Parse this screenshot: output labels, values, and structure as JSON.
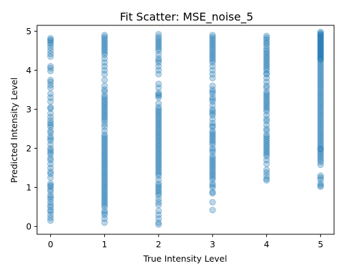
{
  "chart_data": {
    "type": "scatter",
    "title": "Fit Scatter: MSE_noise_5",
    "xlabel": "True Intensity Level",
    "ylabel": "Predicted Intensity Level",
    "xlim": [
      -0.25,
      5.25
    ],
    "ylim": [
      -0.2,
      5.15
    ],
    "xticks": [
      0,
      1,
      2,
      3,
      4,
      5
    ],
    "yticks": [
      0,
      1,
      2,
      3,
      4,
      5
    ],
    "grid": false,
    "marker_color": "#1f77b4",
    "marker_alpha": 0.3,
    "series": [
      {
        "x": [
          0,
          0,
          0,
          0,
          0,
          0,
          0,
          0,
          0,
          0,
          0,
          0,
          0,
          0,
          0,
          0,
          0,
          0,
          0,
          0,
          0,
          0,
          0,
          0,
          0,
          0,
          0,
          0,
          0,
          0,
          0,
          0,
          0,
          0,
          0,
          0,
          0,
          0,
          0,
          0,
          0,
          0,
          0,
          0,
          0,
          0,
          0,
          0,
          0,
          0,
          0,
          0,
          0,
          0,
          0,
          0,
          0,
          0,
          0,
          0
        ],
        "y": [
          4.82,
          4.78,
          4.75,
          4.7,
          4.65,
          4.58,
          4.5,
          4.42,
          4.35,
          4.1,
          3.98,
          3.75,
          3.7,
          3.62,
          3.55,
          3.4,
          3.3,
          3.2,
          3.05,
          3.02,
          2.9,
          2.8,
          2.72,
          2.65,
          2.55,
          2.45,
          2.4,
          2.3,
          2.25,
          2.2,
          2.1,
          2.0,
          1.9,
          1.85,
          1.75,
          1.7,
          1.6,
          1.5,
          1.4,
          1.35,
          1.25,
          1.1,
          1.05,
          1.02,
          0.95,
          0.8,
          0.75,
          0.7,
          0.62,
          0.55,
          0.5,
          0.42,
          0.38,
          0.3,
          0.22,
          0.15,
          4.05,
          2.6,
          1.95,
          0.9
        ]
      },
      {
        "x": [
          1,
          1,
          1,
          1,
          1,
          1,
          1,
          1,
          1,
          1,
          1,
          1,
          1,
          1,
          1,
          1,
          1,
          1,
          1,
          1,
          1,
          1,
          1,
          1,
          1,
          1,
          1,
          1,
          1,
          1,
          1,
          1,
          1,
          1,
          1,
          1,
          1,
          1,
          1,
          1,
          1,
          1,
          1,
          1,
          1,
          1,
          1,
          1,
          1,
          1,
          1,
          1,
          1,
          1,
          1,
          1,
          1,
          1,
          1,
          1,
          1,
          1,
          1,
          1,
          1,
          1,
          1,
          1,
          1,
          1,
          1,
          1,
          1,
          1,
          1,
          1,
          1,
          1,
          1,
          1
        ],
        "y": [
          4.9,
          4.85,
          4.8,
          4.75,
          4.7,
          4.65,
          4.6,
          4.55,
          4.5,
          4.45,
          4.4,
          4.3,
          4.2,
          4.1,
          4.0,
          3.9,
          3.75,
          3.5,
          3.45,
          3.35,
          3.3,
          3.25,
          3.2,
          3.15,
          3.1,
          3.05,
          3.0,
          2.95,
          2.9,
          2.85,
          2.8,
          2.75,
          2.7,
          2.62,
          2.55,
          2.45,
          2.35,
          2.3,
          2.25,
          2.2,
          2.15,
          2.1,
          2.05,
          2.0,
          1.95,
          1.9,
          1.85,
          1.8,
          1.75,
          1.7,
          1.65,
          1.6,
          1.55,
          1.5,
          1.45,
          1.4,
          1.35,
          1.3,
          1.25,
          1.2,
          1.15,
          1.1,
          1.05,
          1.0,
          0.95,
          0.9,
          0.85,
          0.8,
          0.75,
          0.7,
          0.65,
          0.6,
          0.55,
          0.5,
          0.4,
          0.35,
          0.3,
          0.2,
          0.1,
          3.6
        ]
      },
      {
        "x": [
          2,
          2,
          2,
          2,
          2,
          2,
          2,
          2,
          2,
          2,
          2,
          2,
          2,
          2,
          2,
          2,
          2,
          2,
          2,
          2,
          2,
          2,
          2,
          2,
          2,
          2,
          2,
          2,
          2,
          2,
          2,
          2,
          2,
          2,
          2,
          2,
          2,
          2,
          2,
          2,
          2,
          2,
          2,
          2,
          2,
          2,
          2,
          2,
          2,
          2,
          2,
          2,
          2,
          2,
          2,
          2,
          2,
          2,
          2,
          2,
          2,
          2,
          2,
          2,
          2,
          2,
          2,
          2,
          2,
          2,
          2,
          2,
          2,
          2,
          2
        ],
        "y": [
          4.92,
          4.85,
          4.8,
          4.75,
          4.7,
          4.65,
          4.6,
          4.55,
          4.5,
          4.4,
          4.3,
          4.2,
          4.1,
          4.0,
          3.9,
          3.65,
          3.42,
          3.38,
          3.35,
          3.3,
          3.15,
          3.05,
          3.0,
          2.95,
          2.9,
          2.85,
          2.8,
          2.75,
          2.7,
          2.65,
          2.6,
          2.55,
          2.5,
          2.45,
          2.4,
          2.35,
          2.3,
          2.25,
          2.2,
          2.15,
          2.1,
          2.05,
          2.0,
          1.95,
          1.9,
          1.85,
          1.8,
          1.75,
          1.7,
          1.65,
          1.6,
          1.55,
          1.5,
          1.45,
          1.4,
          1.35,
          1.3,
          1.2,
          1.1,
          1.05,
          1.0,
          0.95,
          0.9,
          0.85,
          0.8,
          0.7,
          0.62,
          0.55,
          0.4,
          0.3,
          0.2,
          0.1,
          0.05,
          4.25,
          3.55
        ]
      },
      {
        "x": [
          3,
          3,
          3,
          3,
          3,
          3,
          3,
          3,
          3,
          3,
          3,
          3,
          3,
          3,
          3,
          3,
          3,
          3,
          3,
          3,
          3,
          3,
          3,
          3,
          3,
          3,
          3,
          3,
          3,
          3,
          3,
          3,
          3,
          3,
          3,
          3,
          3,
          3,
          3,
          3,
          3,
          3,
          3,
          3,
          3,
          3,
          3,
          3,
          3,
          3,
          3,
          3,
          3,
          3,
          3,
          3,
          3,
          3,
          3,
          3,
          3,
          3,
          3,
          3,
          3,
          3
        ],
        "y": [
          4.9,
          4.85,
          4.8,
          4.75,
          4.7,
          4.65,
          4.6,
          4.55,
          4.5,
          4.45,
          4.4,
          4.35,
          4.3,
          4.25,
          4.2,
          4.1,
          4.0,
          3.9,
          3.8,
          3.6,
          3.5,
          3.4,
          3.3,
          3.25,
          3.2,
          3.1,
          3.0,
          2.95,
          2.9,
          2.85,
          2.75,
          2.65,
          2.55,
          2.45,
          2.4,
          2.35,
          2.3,
          2.25,
          2.2,
          2.15,
          2.1,
          2.0,
          1.9,
          1.8,
          1.75,
          1.7,
          1.65,
          1.6,
          1.55,
          1.5,
          1.45,
          1.4,
          1.35,
          1.3,
          1.25,
          1.2,
          1.1,
          1.05,
          1.0,
          0.88,
          0.85,
          0.62,
          0.42,
          3.45,
          2.58,
          1.95
        ]
      },
      {
        "x": [
          4,
          4,
          4,
          4,
          4,
          4,
          4,
          4,
          4,
          4,
          4,
          4,
          4,
          4,
          4,
          4,
          4,
          4,
          4,
          4,
          4,
          4,
          4,
          4,
          4,
          4,
          4,
          4,
          4,
          4,
          4,
          4,
          4,
          4,
          4,
          4,
          4,
          4,
          4,
          4,
          4,
          4,
          4,
          4,
          4,
          4,
          4,
          4,
          4,
          4,
          4,
          4,
          4,
          4,
          4,
          4,
          4,
          4,
          4,
          4
        ],
        "y": [
          4.88,
          4.83,
          4.78,
          4.72,
          4.68,
          4.62,
          4.55,
          4.5,
          4.45,
          4.4,
          4.35,
          4.3,
          4.25,
          4.2,
          4.15,
          4.1,
          4.05,
          4.0,
          3.9,
          3.8,
          3.7,
          3.6,
          3.55,
          3.45,
          3.4,
          3.35,
          3.3,
          3.25,
          3.2,
          3.15,
          3.1,
          3.05,
          3.0,
          2.95,
          2.85,
          2.75,
          2.7,
          2.6,
          2.5,
          2.45,
          2.35,
          2.3,
          2.25,
          2.2,
          2.15,
          2.1,
          2.05,
          2.0,
          1.95,
          1.9,
          1.85,
          1.8,
          1.7,
          1.6,
          1.45,
          1.38,
          1.3,
          1.22,
          1.18,
          3.92
        ]
      },
      {
        "x": [
          5,
          5,
          5,
          5,
          5,
          5,
          5,
          5,
          5,
          5,
          5,
          5,
          5,
          5,
          5,
          5,
          5,
          5,
          5,
          5,
          5,
          5,
          5,
          5,
          5,
          5,
          5,
          5,
          5,
          5,
          5,
          5,
          5,
          5,
          5,
          5,
          5,
          5,
          5,
          5,
          5,
          5,
          5,
          5,
          5,
          5,
          5,
          5,
          5,
          5,
          5,
          5,
          5,
          5,
          5,
          5,
          5,
          5,
          5,
          5,
          5,
          5,
          5,
          5,
          5,
          5,
          5,
          5,
          5,
          5,
          5,
          5,
          5,
          5,
          5,
          5,
          5,
          5,
          5,
          5,
          5,
          5,
          5,
          5,
          5,
          5,
          5,
          5,
          5,
          5
        ],
        "y": [
          4.98,
          4.95,
          4.92,
          4.9,
          4.88,
          4.85,
          4.82,
          4.8,
          4.78,
          4.75,
          4.72,
          4.7,
          4.68,
          4.65,
          4.62,
          4.6,
          4.58,
          4.55,
          4.52,
          4.5,
          4.48,
          4.45,
          4.42,
          4.4,
          4.38,
          4.35,
          4.32,
          4.3,
          4.28,
          4.25,
          4.2,
          4.15,
          4.1,
          4.05,
          4.0,
          3.95,
          3.9,
          3.85,
          3.8,
          3.75,
          3.7,
          3.65,
          3.6,
          3.55,
          3.5,
          3.45,
          3.4,
          3.35,
          3.3,
          3.25,
          3.2,
          3.15,
          3.1,
          3.05,
          3.0,
          2.95,
          2.9,
          2.85,
          2.8,
          2.75,
          2.7,
          2.65,
          2.6,
          2.55,
          2.5,
          2.45,
          2.4,
          2.35,
          2.3,
          2.25,
          2.2,
          2.15,
          2.1,
          2.05,
          2.0,
          1.95,
          1.9,
          1.85,
          1.8,
          1.75,
          1.7,
          1.65,
          1.58,
          1.3,
          1.25,
          1.2,
          1.1,
          1.05,
          1.02,
          1.98
        ]
      }
    ]
  }
}
